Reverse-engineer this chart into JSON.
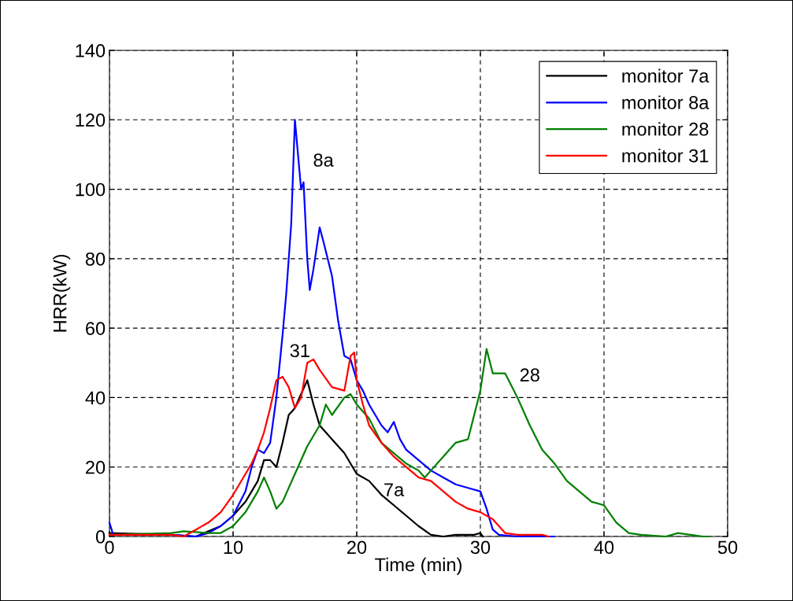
{
  "chart_data": {
    "type": "line",
    "xlabel": "Time (min)",
    "ylabel": "HRR(kW)",
    "xlim": [
      0,
      50
    ],
    "ylim": [
      0,
      140
    ],
    "xticks": [
      0,
      10,
      20,
      30,
      40,
      50
    ],
    "yticks": [
      0,
      20,
      40,
      60,
      80,
      100,
      120,
      140
    ],
    "grid": true,
    "legend": "top right",
    "line_style": "solid",
    "marker": "none",
    "series": [
      {
        "name": "monitor 7a",
        "color": "#000000",
        "x": [
          0,
          5,
          7,
          8,
          9,
          10,
          11,
          12,
          12.5,
          13,
          13.5,
          14,
          14.5,
          15,
          15.5,
          16,
          16.5,
          17,
          18,
          19,
          20,
          21,
          22,
          23,
          24,
          25,
          26,
          27,
          28,
          29.5,
          30,
          30.2
        ],
        "values": [
          1,
          0.5,
          0,
          1.5,
          3,
          6,
          10,
          16,
          22,
          22,
          20,
          27,
          35,
          37,
          41,
          45,
          38,
          32,
          28,
          24,
          18,
          16,
          12,
          9,
          6,
          3,
          0.5,
          0,
          0.5,
          0.5,
          1,
          0
        ]
      },
      {
        "name": "monitor 8a",
        "color": "#0000ff",
        "x": [
          0,
          0.3,
          5,
          7,
          8,
          9,
          10,
          11,
          11.5,
          12,
          12.5,
          13,
          13.5,
          14,
          14.3,
          14.7,
          15,
          15.2,
          15.5,
          15.7,
          16,
          16.2,
          16.5,
          17,
          17.3,
          18,
          18.5,
          19,
          19.5,
          20,
          20.5,
          21,
          22,
          22.5,
          23,
          23.5,
          24,
          25,
          26,
          27,
          28,
          29,
          30,
          30.5,
          31,
          31.5,
          33,
          36
        ],
        "values": [
          4,
          0.5,
          0.5,
          0,
          1,
          3,
          6,
          13,
          20,
          25,
          24,
          27,
          40,
          58,
          70,
          90,
          120,
          112,
          100,
          102,
          80,
          71,
          77,
          89,
          85,
          75,
          62,
          52,
          51,
          45,
          42,
          38,
          32,
          30,
          33,
          28,
          25,
          22,
          19,
          17,
          15,
          14,
          13,
          8,
          2,
          0.5,
          0,
          0
        ]
      },
      {
        "name": "monitor 28",
        "color": "#008000",
        "x": [
          0,
          5,
          6,
          8,
          9,
          10,
          11,
          12,
          12.5,
          13,
          13.5,
          14,
          15,
          16,
          17,
          17.5,
          18,
          19,
          19.5,
          20,
          21,
          22,
          23,
          24,
          25,
          25.5,
          26,
          27,
          28,
          29,
          30,
          30.5,
          31,
          32,
          33,
          34,
          35,
          36,
          37,
          38,
          39,
          40,
          41,
          42,
          43,
          45,
          46,
          47,
          48,
          48.5
        ],
        "values": [
          0.5,
          1,
          1.5,
          1,
          1,
          3,
          7,
          13,
          17,
          13,
          8,
          10,
          18,
          26,
          32,
          38,
          35,
          40,
          41,
          38,
          34,
          27,
          24,
          21,
          19,
          17,
          19,
          23,
          27,
          28,
          42,
          54,
          47,
          47,
          40,
          32,
          25,
          21,
          16,
          13,
          10,
          9,
          4,
          1,
          0.5,
          0,
          1,
          0.5,
          0,
          0
        ]
      },
      {
        "name": "monitor 31",
        "color": "#ff0000",
        "x": [
          0,
          5,
          6,
          7,
          8,
          9,
          10,
          11,
          11.5,
          12,
          12.5,
          13,
          13.5,
          14,
          14.5,
          15,
          15.5,
          16,
          16.5,
          17,
          18,
          19,
          19.5,
          19.8,
          20,
          20.5,
          21,
          22,
          23,
          24,
          25,
          26,
          27,
          28,
          29,
          30,
          31,
          31.5,
          32,
          33,
          35,
          35.5
        ],
        "values": [
          0.5,
          0.5,
          0,
          2,
          4,
          7,
          12,
          18,
          21,
          25,
          30,
          37,
          45,
          46,
          43,
          37,
          40,
          50,
          51,
          48,
          43,
          42,
          52,
          53,
          45,
          38,
          32,
          27,
          23,
          20,
          17,
          16,
          13,
          10,
          8,
          7,
          5,
          3,
          1,
          0.5,
          0.5,
          0
        ]
      }
    ],
    "annotations": [
      "8a",
      "31",
      "28",
      "7a"
    ]
  }
}
